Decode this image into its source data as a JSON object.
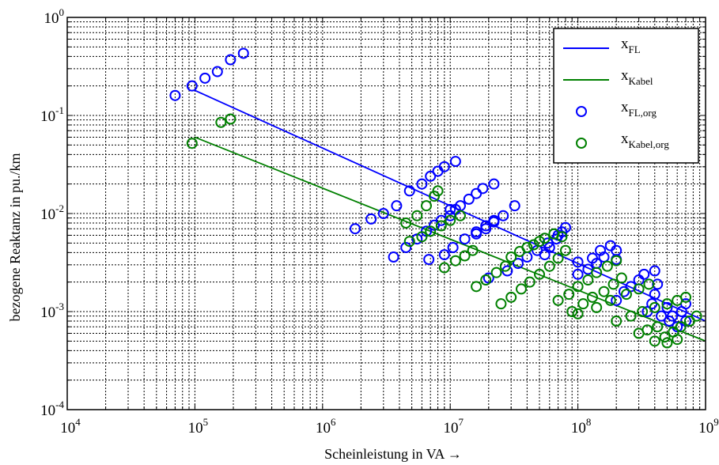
{
  "chart_data": {
    "type": "scatter",
    "xlabel": "Scheinleistung in VA →",
    "ylabel": "bezogene Reaktanz in pu./km",
    "x_scale": "log",
    "y_scale": "log",
    "xlim": [
      10000,
      1000000000
    ],
    "ylim": [
      0.0001,
      1
    ],
    "grid": true,
    "legend_position": "top-right",
    "x_ticks": [
      {
        "base": "10",
        "exp": "4",
        "value": 10000
      },
      {
        "base": "10",
        "exp": "5",
        "value": 100000
      },
      {
        "base": "10",
        "exp": "6",
        "value": 1000000
      },
      {
        "base": "10",
        "exp": "7",
        "value": 10000000
      },
      {
        "base": "10",
        "exp": "8",
        "value": 100000000
      },
      {
        "base": "10",
        "exp": "9",
        "value": 1000000000
      }
    ],
    "y_ticks": [
      {
        "base": "10",
        "exp": "-4",
        "value": 0.0001
      },
      {
        "base": "10",
        "exp": "-3",
        "value": 0.001
      },
      {
        "base": "10",
        "exp": "-2",
        "value": 0.01
      },
      {
        "base": "10",
        "exp": "-1",
        "value": 0.1
      },
      {
        "base": "10",
        "exp": "0",
        "value": 1
      }
    ],
    "series": [
      {
        "name": "x_FL",
        "label_main": "x",
        "label_sub": "FL",
        "kind": "line",
        "color": "#0000ff",
        "x": [
          100000,
          1000000000
        ],
        "y": [
          0.18,
          0.0008
        ]
      },
      {
        "name": "x_Kabel",
        "label_main": "x",
        "label_sub": "Kabel",
        "kind": "line",
        "color": "#008000",
        "x": [
          100000,
          1000000000
        ],
        "y": [
          0.06,
          0.0005
        ]
      },
      {
        "name": "x_FL,org",
        "label_main": "x",
        "label_sub": "FL,org",
        "kind": "marker",
        "color": "#0000ff",
        "x": [
          70000,
          95000,
          120000,
          150000,
          190000,
          240000,
          1800000,
          2400000,
          3000000,
          3800000,
          3600000,
          4500000,
          5500000,
          6500000,
          7500000,
          8500000,
          10000000,
          11000000,
          4800000,
          6000000,
          7000000,
          8000000,
          9000000,
          11000000,
          6800000,
          9000000,
          10500000,
          13000000,
          16000000,
          19000000,
          22000000,
          10000000,
          12000000,
          14000000,
          16000000,
          18000000,
          22000000,
          16000000,
          19000000,
          22000000,
          26000000,
          32000000,
          20000000,
          28000000,
          34000000,
          40000000,
          48000000,
          58000000,
          70000000,
          55000000,
          60000000,
          68000000,
          75000000,
          80000000,
          100000000,
          120000000,
          140000000,
          160000000,
          200000000,
          100000000,
          130000000,
          150000000,
          180000000,
          200000000,
          200000000,
          230000000,
          260000000,
          300000000,
          330000000,
          400000000,
          420000000,
          400000000,
          380000000,
          350000000,
          450000000,
          520000000,
          600000000,
          700000000,
          550000000,
          650000000,
          700000000,
          500000000
        ],
        "y": [
          0.16,
          0.2,
          0.24,
          0.28,
          0.37,
          0.43,
          0.007,
          0.0088,
          0.01,
          0.012,
          0.0036,
          0.0045,
          0.0055,
          0.0066,
          0.0076,
          0.0085,
          0.0095,
          0.011,
          0.017,
          0.02,
          0.024,
          0.027,
          0.03,
          0.034,
          0.0034,
          0.0038,
          0.0045,
          0.0055,
          0.0065,
          0.0075,
          0.0085,
          0.011,
          0.012,
          0.014,
          0.016,
          0.018,
          0.02,
          0.0062,
          0.007,
          0.0082,
          0.0095,
          0.012,
          0.0022,
          0.0026,
          0.0031,
          0.0036,
          0.0042,
          0.005,
          0.006,
          0.0038,
          0.0045,
          0.0055,
          0.0065,
          0.0072,
          0.0024,
          0.0027,
          0.0031,
          0.0036,
          0.0042,
          0.0032,
          0.0035,
          0.0042,
          0.0047,
          0.0034,
          0.0013,
          0.0016,
          0.0018,
          0.0021,
          0.0024,
          0.0026,
          0.0019,
          0.0015,
          0.0012,
          0.001,
          0.0009,
          0.0008,
          0.0007,
          0.0008,
          0.0009,
          0.001,
          0.0012,
          0.0011
        ]
      },
      {
        "name": "x_Kabel,org",
        "label_main": "x",
        "label_sub": "Kabel,org",
        "kind": "marker",
        "color": "#008000",
        "x": [
          95000,
          160000,
          190000,
          4500000,
          5500000,
          6500000,
          7500000,
          8000000,
          4800000,
          6000000,
          7000000,
          8500000,
          10000000,
          12000000,
          9000000,
          11000000,
          13000000,
          15000000,
          16000000,
          19000000,
          23000000,
          27000000,
          25000000,
          30000000,
          36000000,
          42000000,
          50000000,
          60000000,
          70000000,
          80000000,
          30000000,
          35000000,
          40000000,
          45000000,
          50000000,
          55000000,
          65000000,
          75000000,
          70000000,
          85000000,
          100000000,
          120000000,
          140000000,
          170000000,
          200000000,
          90000000,
          110000000,
          130000000,
          160000000,
          190000000,
          220000000,
          100000000,
          140000000,
          180000000,
          240000000,
          300000000,
          360000000,
          200000000,
          260000000,
          320000000,
          400000000,
          500000000,
          600000000,
          700000000,
          400000000,
          480000000,
          560000000,
          640000000,
          750000000,
          850000000,
          300000000,
          350000000,
          420000000,
          500000000,
          600000000
        ],
        "y": [
          0.052,
          0.085,
          0.092,
          0.008,
          0.0095,
          0.012,
          0.015,
          0.017,
          0.0052,
          0.0058,
          0.0066,
          0.0075,
          0.0085,
          0.0095,
          0.0028,
          0.0033,
          0.0037,
          0.0042,
          0.0018,
          0.0021,
          0.0025,
          0.0029,
          0.0012,
          0.0014,
          0.0017,
          0.002,
          0.0024,
          0.0029,
          0.0035,
          0.0042,
          0.0036,
          0.0041,
          0.0045,
          0.0048,
          0.0052,
          0.0056,
          0.0062,
          0.0058,
          0.0013,
          0.0015,
          0.0018,
          0.0021,
          0.0025,
          0.0029,
          0.0033,
          0.001,
          0.0012,
          0.0014,
          0.0016,
          0.0019,
          0.0022,
          0.00095,
          0.0011,
          0.0013,
          0.0015,
          0.0017,
          0.0019,
          0.0008,
          0.0009,
          0.001,
          0.0011,
          0.0012,
          0.0013,
          0.0014,
          0.0005,
          0.00055,
          0.00062,
          0.0007,
          0.0008,
          0.0009,
          0.0006,
          0.00065,
          0.0007,
          0.00048,
          0.00052
        ]
      }
    ]
  }
}
